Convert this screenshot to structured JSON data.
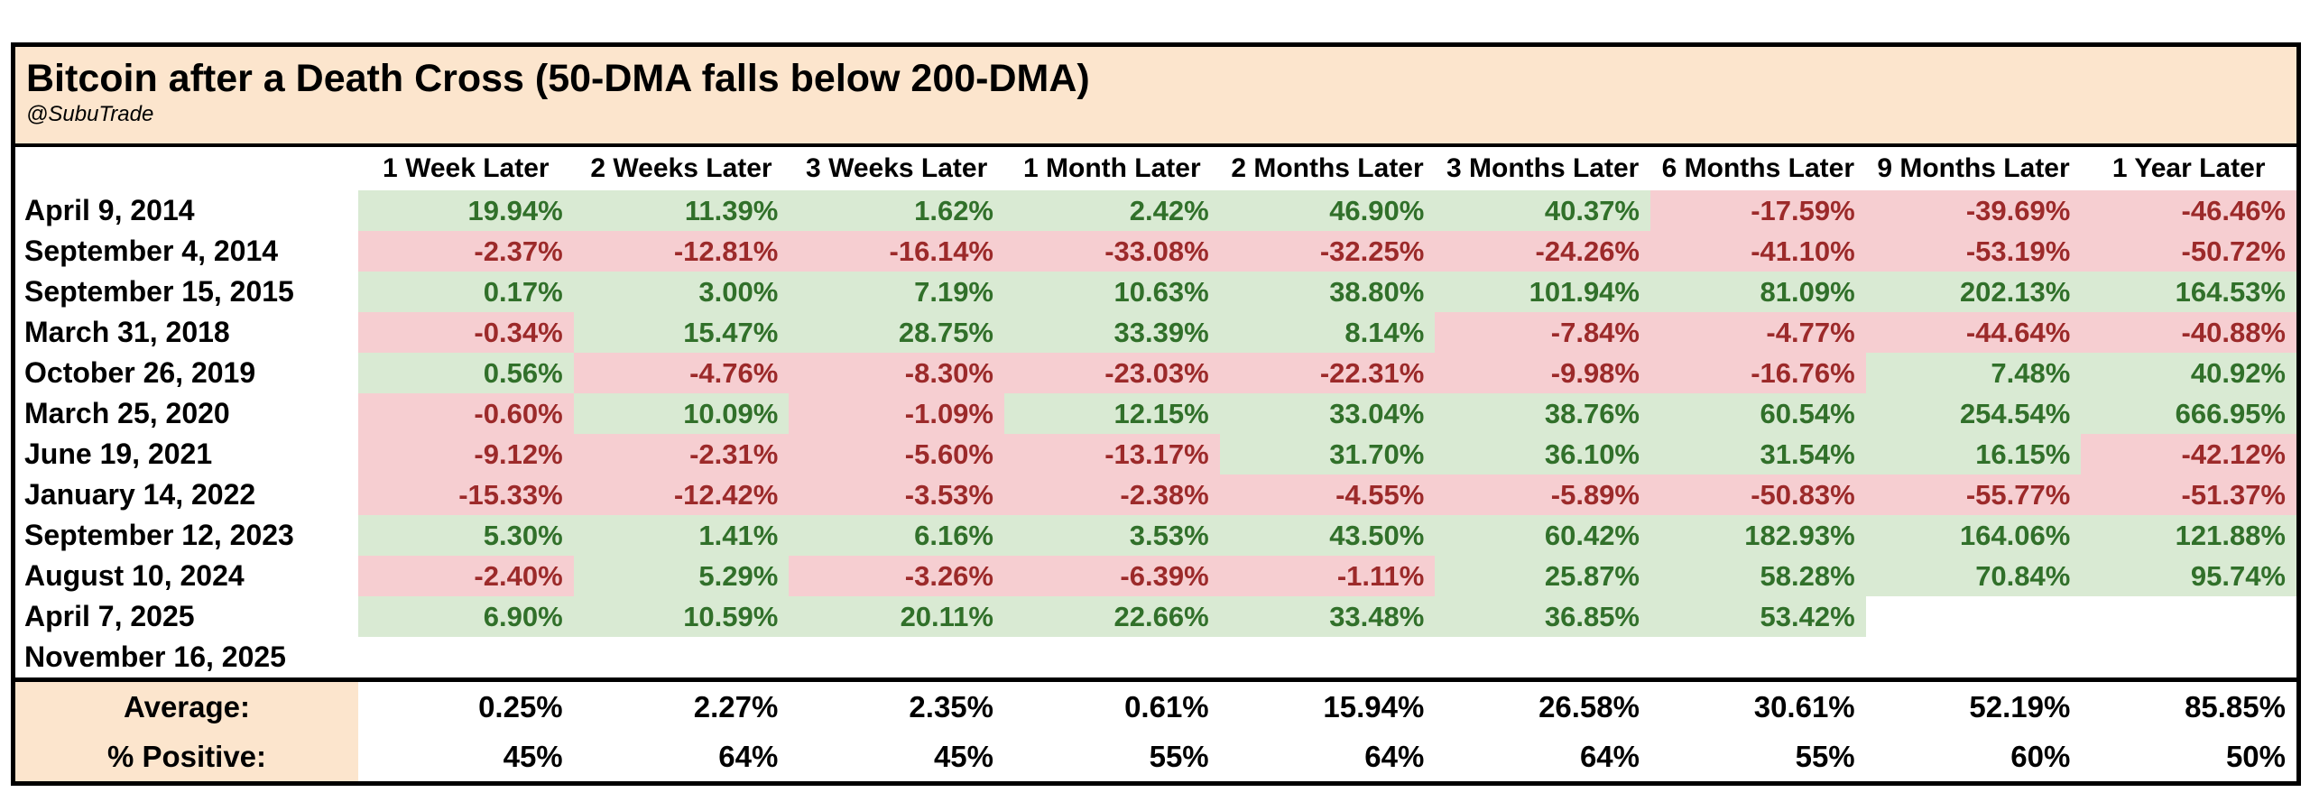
{
  "chart_data": {
    "type": "table",
    "title": "Bitcoin after a Death Cross (50-DMA falls below 200-DMA)",
    "subtitle": "@SubuTrade",
    "columns": [
      "1 Week Later",
      "2 Weeks Later",
      "3 Weeks Later",
      "1 Month Later",
      "2 Months Later",
      "3 Months Later",
      "6 Months Later",
      "9 Months Later",
      "1 Year Later"
    ],
    "rows": [
      {
        "date": "April 9, 2014",
        "values": [
          "19.94%",
          "11.39%",
          "1.62%",
          "2.42%",
          "46.90%",
          "40.37%",
          "-17.59%",
          "-39.69%",
          "-46.46%"
        ]
      },
      {
        "date": "September 4, 2014",
        "values": [
          "-2.37%",
          "-12.81%",
          "-16.14%",
          "-33.08%",
          "-32.25%",
          "-24.26%",
          "-41.10%",
          "-53.19%",
          "-50.72%"
        ]
      },
      {
        "date": "September 15, 2015",
        "values": [
          "0.17%",
          "3.00%",
          "7.19%",
          "10.63%",
          "38.80%",
          "101.94%",
          "81.09%",
          "202.13%",
          "164.53%"
        ]
      },
      {
        "date": "March 31, 2018",
        "values": [
          "-0.34%",
          "15.47%",
          "28.75%",
          "33.39%",
          "8.14%",
          "-7.84%",
          "-4.77%",
          "-44.64%",
          "-40.88%"
        ]
      },
      {
        "date": "October 26, 2019",
        "values": [
          "0.56%",
          "-4.76%",
          "-8.30%",
          "-23.03%",
          "-22.31%",
          "-9.98%",
          "-16.76%",
          "7.48%",
          "40.92%"
        ]
      },
      {
        "date": "March 25, 2020",
        "values": [
          "-0.60%",
          "10.09%",
          "-1.09%",
          "12.15%",
          "33.04%",
          "38.76%",
          "60.54%",
          "254.54%",
          "666.95%"
        ]
      },
      {
        "date": "June 19, 2021",
        "values": [
          "-9.12%",
          "-2.31%",
          "-5.60%",
          "-13.17%",
          "31.70%",
          "36.10%",
          "31.54%",
          "16.15%",
          "-42.12%"
        ]
      },
      {
        "date": "January 14, 2022",
        "values": [
          "-15.33%",
          "-12.42%",
          "-3.53%",
          "-2.38%",
          "-4.55%",
          "-5.89%",
          "-50.83%",
          "-55.77%",
          "-51.37%"
        ]
      },
      {
        "date": "September 12, 2023",
        "values": [
          "5.30%",
          "1.41%",
          "6.16%",
          "3.53%",
          "43.50%",
          "60.42%",
          "182.93%",
          "164.06%",
          "121.88%"
        ]
      },
      {
        "date": "August 10, 2024",
        "values": [
          "-2.40%",
          "5.29%",
          "-3.26%",
          "-6.39%",
          "-1.11%",
          "25.87%",
          "58.28%",
          "70.84%",
          "95.74%"
        ]
      },
      {
        "date": "April 7, 2025",
        "values": [
          "6.90%",
          "10.59%",
          "20.11%",
          "22.66%",
          "33.48%",
          "36.85%",
          "53.42%",
          "",
          ""
        ]
      },
      {
        "date": "November 16, 2025",
        "values": [
          "",
          "",
          "",
          "",
          "",
          "",
          "",
          "",
          ""
        ]
      }
    ],
    "summary": {
      "average_label": "Average:",
      "average_values": [
        "0.25%",
        "2.27%",
        "2.35%",
        "0.61%",
        "15.94%",
        "26.58%",
        "30.61%",
        "52.19%",
        "85.85%"
      ],
      "positive_label": "% Positive:",
      "positive_values": [
        "45%",
        "64%",
        "45%",
        "55%",
        "64%",
        "64%",
        "55%",
        "60%",
        "50%"
      ]
    }
  },
  "colors": {
    "positive_bg": "#d9ead3",
    "positive_text": "#31702a",
    "negative_bg": "#f6ced1",
    "negative_text": "#9c2a2a",
    "title_bg": "#fce5cd",
    "border": "#000000"
  }
}
